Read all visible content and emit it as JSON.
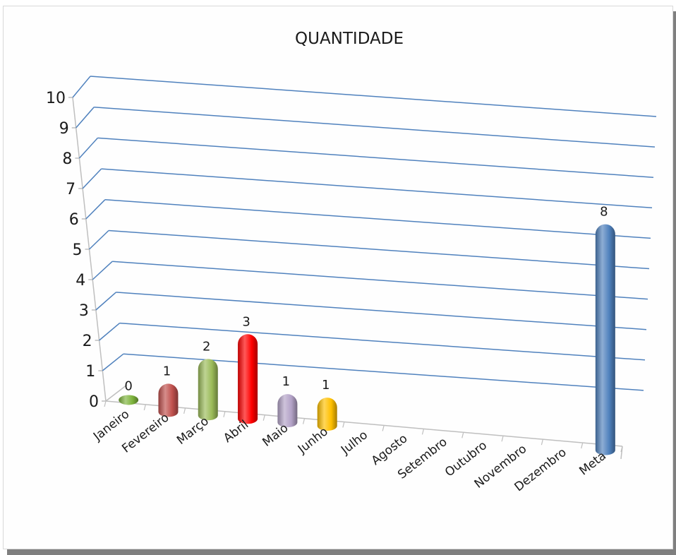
{
  "chart_data": {
    "type": "bar",
    "title": "QUANTIDADE",
    "categories": [
      "Janeiro",
      "Fevereiro",
      "Março",
      "Abril",
      "Maio",
      "Junho",
      "Julho",
      "Agosto",
      "Setembro",
      "Outubro",
      "Novembro",
      "Dezembro",
      "Meta"
    ],
    "values": [
      0,
      1,
      2,
      3,
      1,
      1,
      null,
      null,
      null,
      null,
      null,
      null,
      8
    ],
    "data_labels": [
      "0",
      "1",
      "2",
      "3",
      "1",
      "1",
      "",
      "",
      "",
      "",
      "",
      "",
      "8"
    ],
    "colors": [
      "#7db33c",
      "#c0504d",
      "#9bbb59",
      "#ff0000",
      "#b3a2c7",
      "#ffc000",
      "",
      "",
      "",
      "",
      "",
      "",
      "#4f81bd"
    ],
    "y_ticks": [
      "0",
      "1",
      "2",
      "3",
      "4",
      "5",
      "6",
      "7",
      "8",
      "9",
      "10"
    ],
    "ylim": [
      0,
      10
    ],
    "xlabel": "",
    "ylabel": "",
    "grid": true,
    "style": "3d-cylinder",
    "gridline_color": "#4f81bd"
  }
}
